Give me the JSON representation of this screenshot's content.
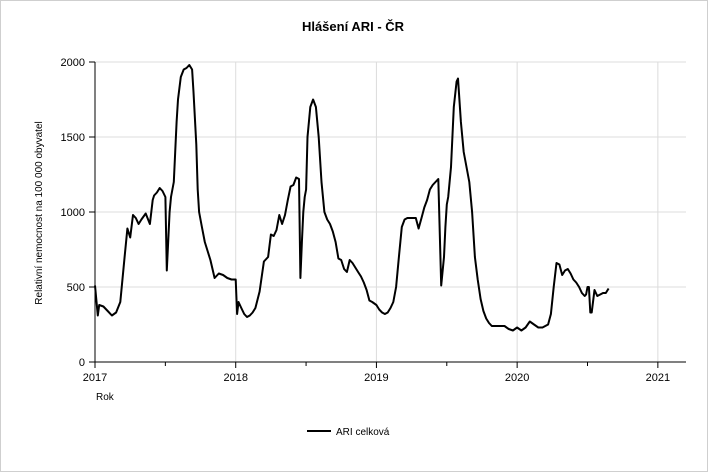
{
  "chart_data": {
    "type": "line",
    "title": "Hlášení ARI - ČR",
    "xlabel": "Rok",
    "ylabel": "Relativní nemocnost na 100 000 obyvatel",
    "xlim": [
      2017,
      2021.2
    ],
    "ylim": [
      0,
      2000
    ],
    "x_ticks": [
      "2017",
      "2018",
      "2019",
      "2020",
      "2021"
    ],
    "y_ticks": [
      "0",
      "500",
      "1000",
      "1500",
      "2000"
    ],
    "grid": true,
    "legend_position": "bottom-center",
    "series": [
      {
        "name": "ARI celková",
        "color": "#000000",
        "x": [
          2017.0,
          2017.02,
          2017.03,
          2017.06,
          2017.09,
          2017.12,
          2017.15,
          2017.18,
          2017.21,
          2017.23,
          2017.25,
          2017.27,
          2017.29,
          2017.31,
          2017.33,
          2017.36,
          2017.39,
          2017.41,
          2017.42,
          2017.44,
          2017.46,
          2017.48,
          2017.5,
          2017.51,
          2017.53,
          2017.54,
          2017.56,
          2017.57,
          2017.58,
          2017.59,
          2017.61,
          2017.63,
          2017.65,
          2017.67,
          2017.69,
          2017.7,
          2017.72,
          2017.73,
          2017.74,
          2017.76,
          2017.78,
          2017.8,
          2017.82,
          2017.85,
          2017.88,
          2017.91,
          2017.94,
          2017.97,
          2018.0,
          2018.01,
          2018.02,
          2018.04,
          2018.06,
          2018.08,
          2018.1,
          2018.12,
          2018.14,
          2018.17,
          2018.2,
          2018.23,
          2018.25,
          2018.27,
          2018.29,
          2018.31,
          2018.33,
          2018.35,
          2018.37,
          2018.39,
          2018.41,
          2018.43,
          2018.45,
          2018.46,
          2018.47,
          2018.48,
          2018.49,
          2018.5,
          2018.51,
          2018.53,
          2018.55,
          2018.57,
          2018.59,
          2018.61,
          2018.63,
          2018.65,
          2018.67,
          2018.69,
          2018.71,
          2018.73,
          2018.75,
          2018.77,
          2018.79,
          2018.81,
          2018.83,
          2018.85,
          2018.87,
          2018.89,
          2018.91,
          2018.93,
          2018.95,
          2018.97,
          2019.0,
          2019.02,
          2019.04,
          2019.06,
          2019.08,
          2019.1,
          2019.12,
          2019.14,
          2019.16,
          2019.18,
          2019.2,
          2019.22,
          2019.24,
          2019.26,
          2019.28,
          2019.3,
          2019.32,
          2019.34,
          2019.36,
          2019.38,
          2019.4,
          2019.42,
          2019.44,
          2019.46,
          2019.48,
          2019.49,
          2019.5,
          2019.51,
          2019.53,
          2019.55,
          2019.57,
          2019.58,
          2019.6,
          2019.62,
          2019.64,
          2019.66,
          2019.68,
          2019.7,
          2019.72,
          2019.74,
          2019.76,
          2019.78,
          2019.8,
          2019.82,
          2019.85,
          2019.88,
          2019.91,
          2019.94,
          2019.97,
          2020.0,
          2020.03,
          2020.06,
          2020.09,
          2020.12,
          2020.15,
          2020.18,
          2020.2,
          2020.22,
          2020.24,
          2020.26,
          2020.28,
          2020.3,
          2020.32,
          2020.34,
          2020.36,
          2020.38,
          2020.4,
          2020.42,
          2020.44,
          2020.46,
          2020.48,
          2020.49,
          2020.5,
          2020.51,
          2020.52,
          2020.53,
          2020.55,
          2020.57,
          2020.59,
          2020.61,
          2020.63,
          2020.65
        ],
        "y": [
          510,
          310,
          380,
          370,
          340,
          310,
          330,
          400,
          700,
          890,
          830,
          980,
          960,
          920,
          950,
          990,
          920,
          1080,
          1110,
          1130,
          1160,
          1140,
          1100,
          610,
          1000,
          1100,
          1200,
          1400,
          1600,
          1750,
          1900,
          1950,
          1960,
          1980,
          1950,
          1800,
          1450,
          1150,
          1000,
          900,
          800,
          740,
          680,
          560,
          590,
          580,
          560,
          550,
          550,
          320,
          400,
          360,
          320,
          300,
          310,
          330,
          360,
          470,
          670,
          700,
          850,
          840,
          880,
          980,
          920,
          980,
          1080,
          1170,
          1180,
          1230,
          1220,
          560,
          800,
          1000,
          1100,
          1150,
          1500,
          1700,
          1750,
          1700,
          1500,
          1200,
          1000,
          950,
          920,
          870,
          800,
          690,
          680,
          620,
          600,
          680,
          660,
          630,
          600,
          570,
          530,
          480,
          410,
          400,
          380,
          350,
          330,
          320,
          330,
          360,
          400,
          500,
          700,
          900,
          950,
          960,
          960,
          960,
          960,
          890,
          960,
          1030,
          1080,
          1150,
          1180,
          1200,
          1220,
          510,
          700,
          900,
          1050,
          1100,
          1300,
          1700,
          1870,
          1890,
          1600,
          1400,
          1300,
          1200,
          1000,
          700,
          550,
          420,
          340,
          290,
          260,
          240,
          240,
          240,
          240,
          220,
          210,
          230,
          210,
          230,
          270,
          250,
          230,
          230,
          240,
          250,
          320,
          500,
          660,
          650,
          580,
          610,
          620,
          590,
          550,
          530,
          500,
          460,
          440,
          450,
          500,
          500,
          330,
          330,
          480,
          440,
          450,
          460,
          460,
          490
        ]
      }
    ]
  }
}
